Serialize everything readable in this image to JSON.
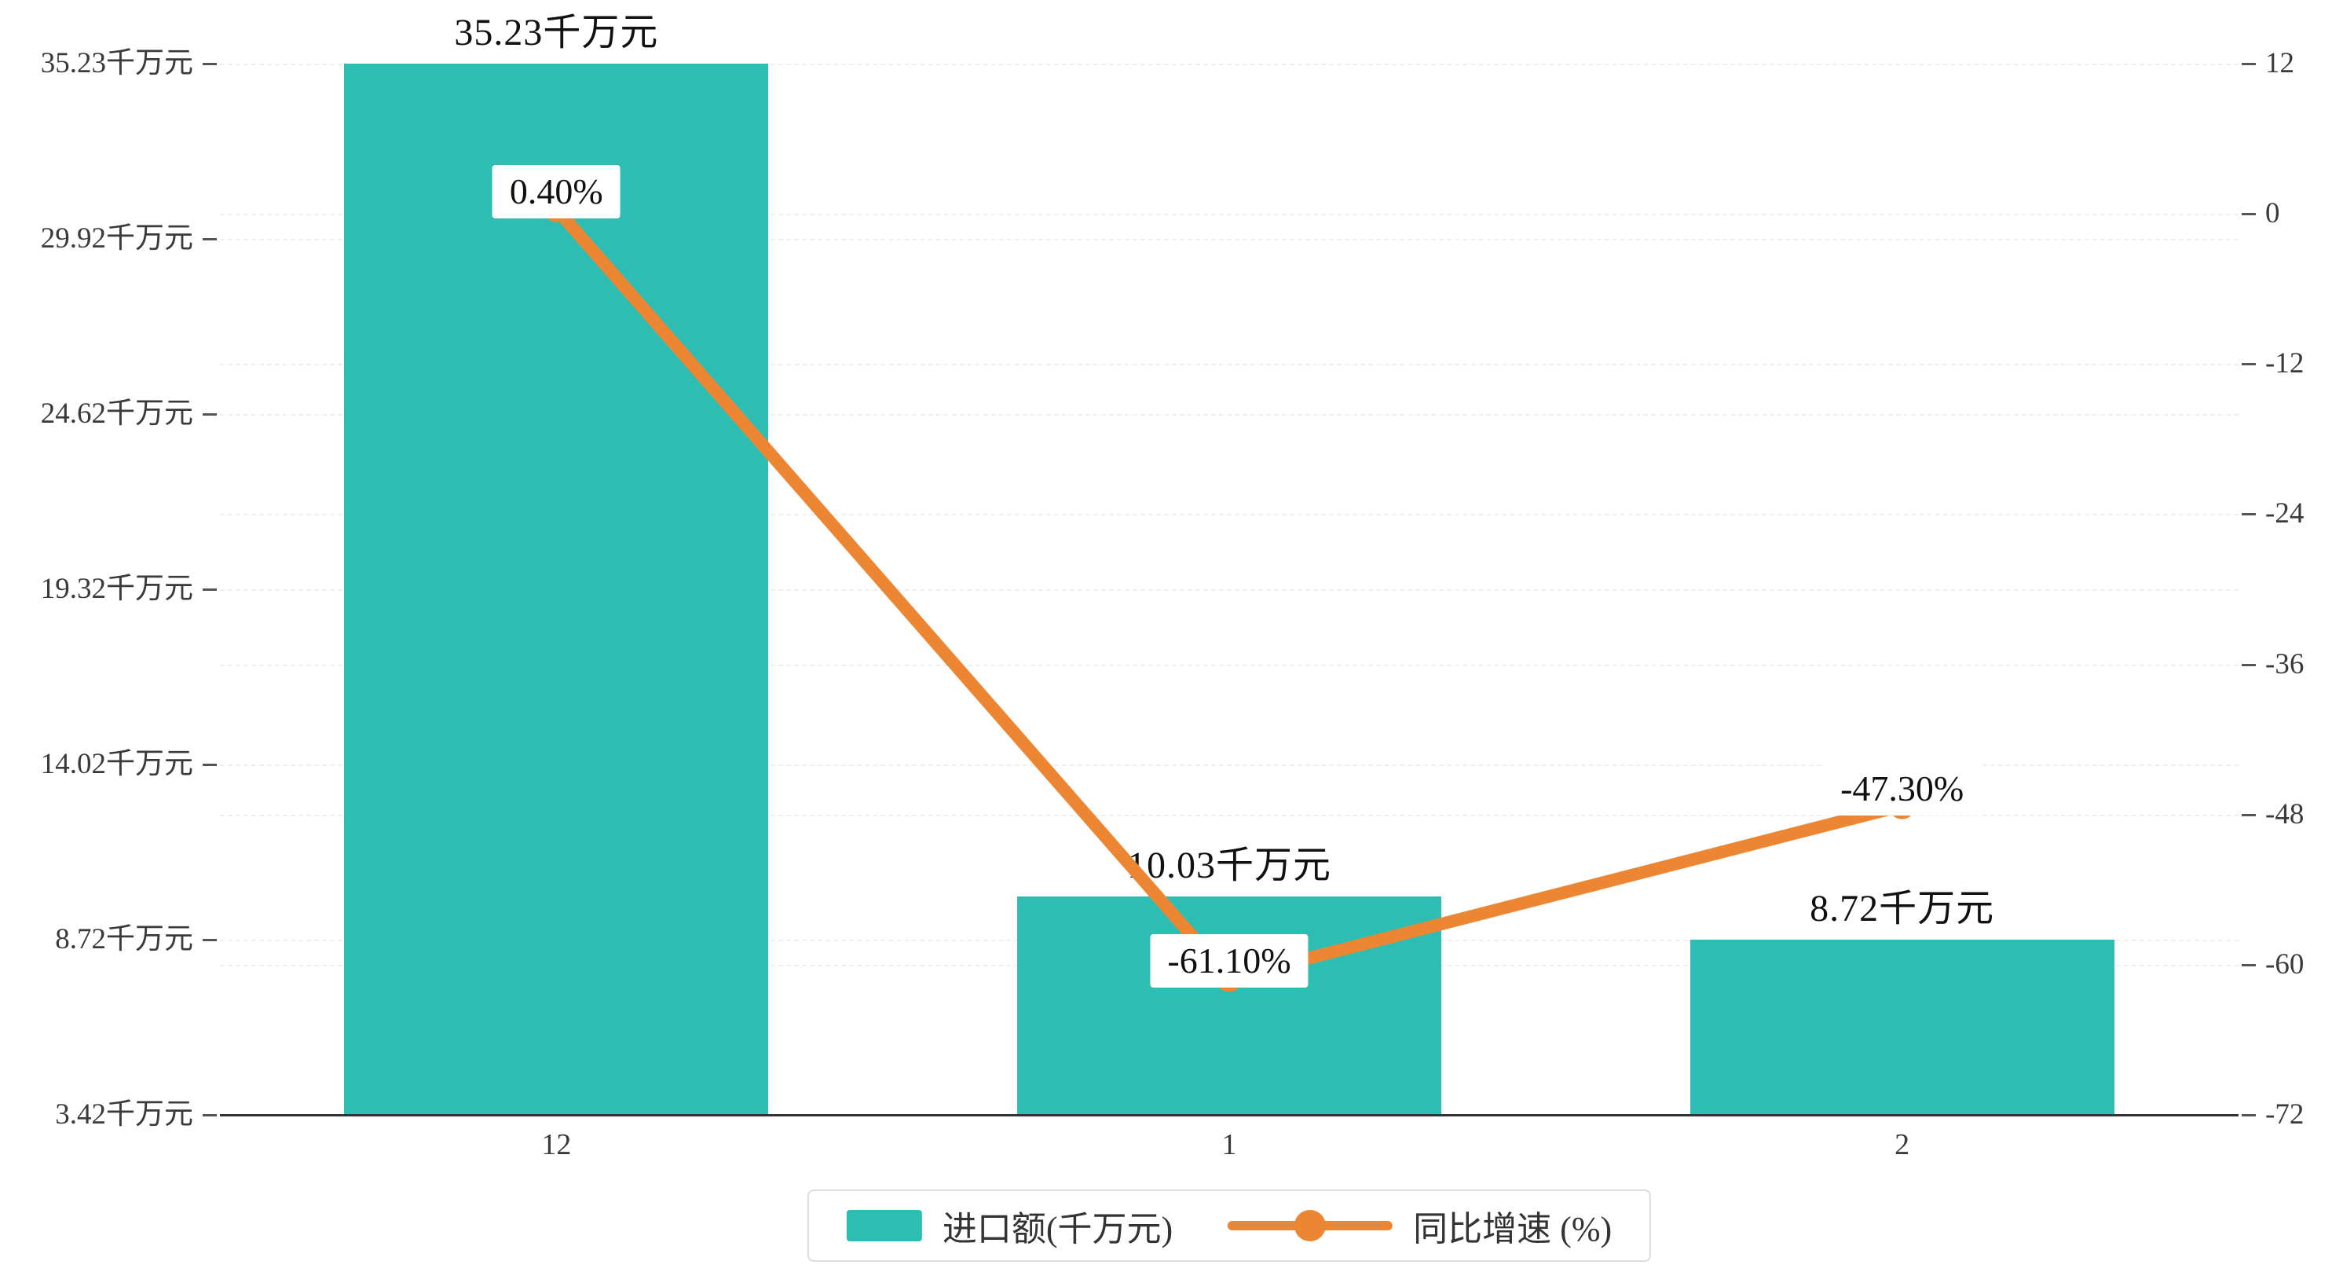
{
  "chart_data": {
    "type": "bar",
    "combo": "bar+line dual-axis",
    "categories": [
      "12",
      "1",
      "2"
    ],
    "series": [
      {
        "name": "进口额(千万元)",
        "type": "bar",
        "color": "#2dbdb2",
        "values": [
          35.23,
          10.03,
          8.72
        ],
        "data_labels": [
          "35.23千万元",
          "10.03千万元",
          "8.72千万元"
        ]
      },
      {
        "name": "同比增速 (%)",
        "type": "line",
        "color": "#ed8633",
        "values": [
          0.4,
          -61.1,
          -47.3
        ],
        "data_labels": [
          "0.40%",
          "-61.10%",
          "-47.30%"
        ]
      }
    ],
    "left_axis": {
      "min": 3.42,
      "max": 35.23,
      "tick_values": [
        35.23,
        29.92,
        24.62,
        19.32,
        14.02,
        8.72,
        3.42
      ],
      "tick_labels": [
        "35.23千万元",
        "29.92千万元",
        "24.62千万元",
        "19.32千万元",
        "14.02千万元",
        "8.72千万元",
        "3.42千万元"
      ]
    },
    "right_axis": {
      "min": -72,
      "max": 12,
      "tick_values": [
        12,
        0,
        -12,
        -24,
        -36,
        -48,
        -60,
        -72
      ],
      "tick_labels": [
        "12",
        "0",
        "-12",
        "-24",
        "-36",
        "-48",
        "-60",
        "-72"
      ]
    },
    "legend": {
      "position": "bottom-center",
      "items": [
        {
          "label": "进口额(千万元)",
          "marker": "bar-swatch",
          "color": "#2dbdb2"
        },
        {
          "label": "同比增速 (%)",
          "marker": "line-marker",
          "color": "#ed8633"
        }
      ]
    },
    "grid": "dashed-horizontal",
    "title": ""
  },
  "colors": {
    "bar": "#2dbdb2",
    "line": "#ed8633",
    "grid": "#efefef",
    "axis_text": "#3a3a3a",
    "label_bg": "#ffffff"
  }
}
